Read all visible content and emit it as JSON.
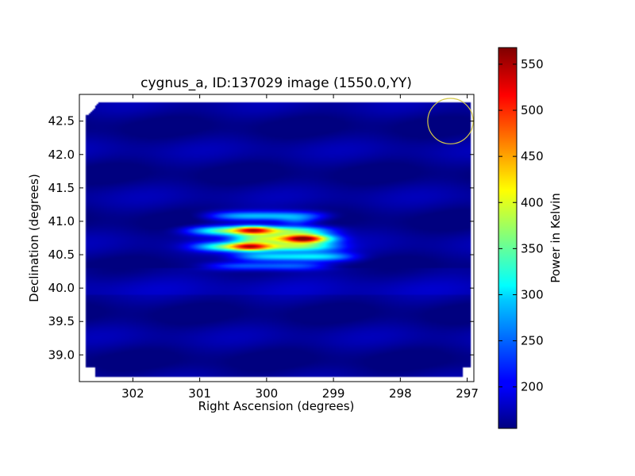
{
  "chart_data": {
    "type": "heatmap",
    "title": "cygnus_a, ID:137029 image (1550.0,YY)",
    "xlabel": "Right Ascension (degrees)",
    "ylabel": "Declination (degrees)",
    "colorbar_label": "Power in Kelvin",
    "colormap": "jet",
    "x_axis_inverted": true,
    "xlim": [
      302.8,
      296.9
    ],
    "ylim": [
      38.6,
      42.9
    ],
    "clim": [
      155,
      568
    ],
    "x_ticks": [
      302,
      301,
      300,
      299,
      298,
      297
    ],
    "x_tick_labels": [
      "302",
      "301",
      "300",
      "299",
      "298",
      "297"
    ],
    "y_ticks": [
      39.0,
      39.5,
      40.0,
      40.5,
      41.0,
      41.5,
      42.0,
      42.5
    ],
    "y_tick_labels": [
      "39.0",
      "39.5",
      "40.0",
      "40.5",
      "41.0",
      "41.5",
      "42.0",
      "42.5"
    ],
    "colorbar_ticks": [
      200,
      250,
      300,
      350,
      400,
      450,
      500,
      550
    ],
    "colorbar_tick_labels": [
      "200",
      "250",
      "300",
      "350",
      "400",
      "450",
      "500",
      "550"
    ],
    "background_level": 175,
    "fringes": [
      {
        "dec": 41.08,
        "ra_center": 300.0,
        "ra_halfwidth": 0.85,
        "dec_halfwidth": 0.07,
        "peak": 300
      },
      {
        "dec": 40.86,
        "ra_center": 300.1,
        "ra_halfwidth": 1.0,
        "dec_halfwidth": 0.07,
        "peak": 380
      },
      {
        "dec": 40.74,
        "ra_center": 299.7,
        "ra_halfwidth": 0.75,
        "dec_halfwidth": 0.07,
        "peak": 380
      },
      {
        "dec": 40.62,
        "ra_center": 300.0,
        "ra_halfwidth": 1.0,
        "dec_halfwidth": 0.07,
        "peak": 380
      },
      {
        "dec": 40.47,
        "ra_center": 299.6,
        "ra_halfwidth": 0.85,
        "dec_halfwidth": 0.07,
        "peak": 320
      },
      {
        "dec": 40.33,
        "ra_center": 300.0,
        "ra_halfwidth": 0.85,
        "dec_halfwidth": 0.06,
        "peak": 270
      }
    ],
    "peaks": [
      {
        "ra": 300.2,
        "dec": 40.87,
        "value": 540
      },
      {
        "ra": 299.45,
        "dec": 40.74,
        "value": 568
      },
      {
        "ra": 300.25,
        "dec": 40.62,
        "value": 530
      },
      {
        "ra": 299.55,
        "dec": 41.0,
        "value": 420
      }
    ],
    "beam_circle": {
      "ra": 297.25,
      "dec": 42.5,
      "radius_deg": 0.34,
      "color": "#d4c84a"
    }
  }
}
